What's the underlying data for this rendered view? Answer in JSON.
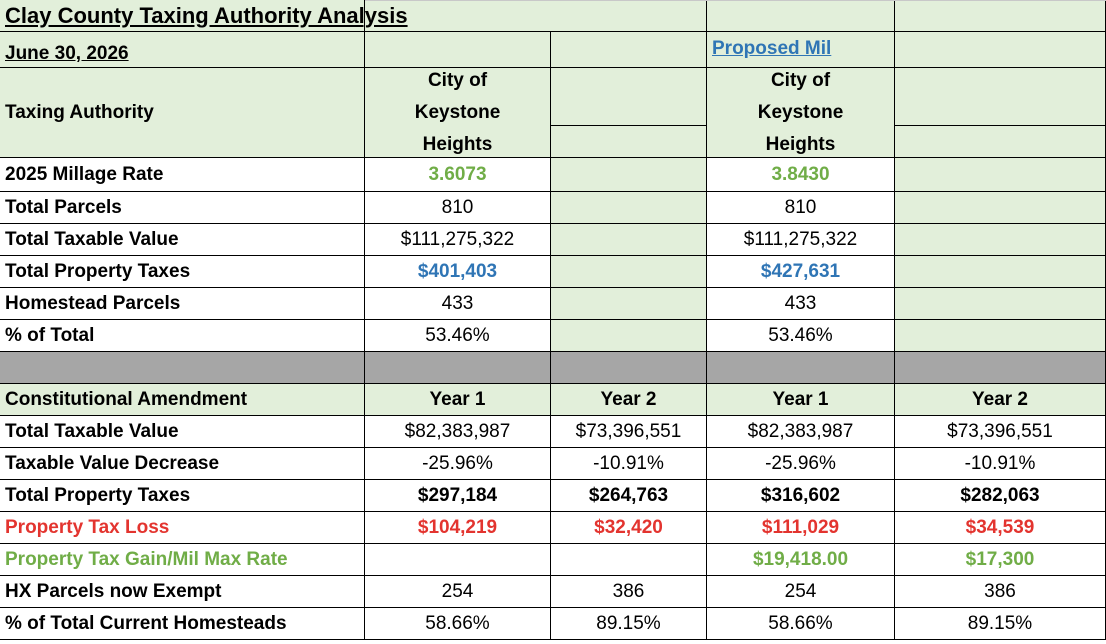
{
  "sheet": {
    "title": "Clay County Taxing Authority Analysis",
    "date": "June 30, 2026",
    "proposed_link": "Proposed Mil",
    "header_label": "Taxing Authority",
    "col_headers": [
      "City of Keystone Heights",
      "",
      "City of Keystone Heights",
      ""
    ]
  },
  "section1": [
    {
      "label": "2025 Millage Rate",
      "style": "green",
      "values": [
        "3.6073",
        "",
        "3.8430",
        ""
      ]
    },
    {
      "label": "Total Parcels",
      "style": "normal",
      "values": [
        "810",
        "",
        "810",
        ""
      ]
    },
    {
      "label": "Total Taxable Value",
      "style": "normal",
      "values": [
        "$111,275,322",
        "",
        "$111,275,322",
        ""
      ]
    },
    {
      "label": "Total Property Taxes",
      "style": "blue",
      "values": [
        "$401,403",
        "",
        "$427,631",
        ""
      ]
    },
    {
      "label": "Homestead Parcels",
      "style": "normal",
      "values": [
        "433",
        "",
        "433",
        ""
      ]
    },
    {
      "label": "% of Total",
      "style": "normal",
      "values": [
        "53.46%",
        "",
        "53.46%",
        ""
      ]
    }
  ],
  "section2_header": {
    "label": "Constitutional Amendment",
    "values": [
      "Year 1",
      "Year 2",
      "Year 1",
      "Year 2"
    ]
  },
  "section2": [
    {
      "label": "Total Taxable Value",
      "style": "normal",
      "values": [
        "$82,383,987",
        "$73,396,551",
        "$82,383,987",
        "$73,396,551"
      ]
    },
    {
      "label": "Taxable Value Decrease",
      "style": "normal",
      "values": [
        "-25.96%",
        "-10.91%",
        "-25.96%",
        "-10.91%"
      ]
    },
    {
      "label": "Total Property Taxes",
      "style": "bold",
      "values": [
        "$297,184",
        "$264,763",
        "$316,602",
        "$282,063"
      ]
    },
    {
      "label": "Property Tax Loss",
      "style": "red",
      "values": [
        "$104,219",
        "$32,420",
        "$111,029",
        "$34,539"
      ]
    },
    {
      "label": "Property Tax Gain/Mil Max Rate",
      "style": "green",
      "values": [
        "",
        "",
        "$19,418.00",
        "$17,300"
      ]
    },
    {
      "label": "HX Parcels now Exempt",
      "style": "normal",
      "values": [
        "254",
        "386",
        "254",
        "386"
      ]
    },
    {
      "label": "% of Total Current Homesteads",
      "style": "normal",
      "values": [
        "58.66%",
        "89.15%",
        "58.66%",
        "89.15%"
      ]
    }
  ]
}
